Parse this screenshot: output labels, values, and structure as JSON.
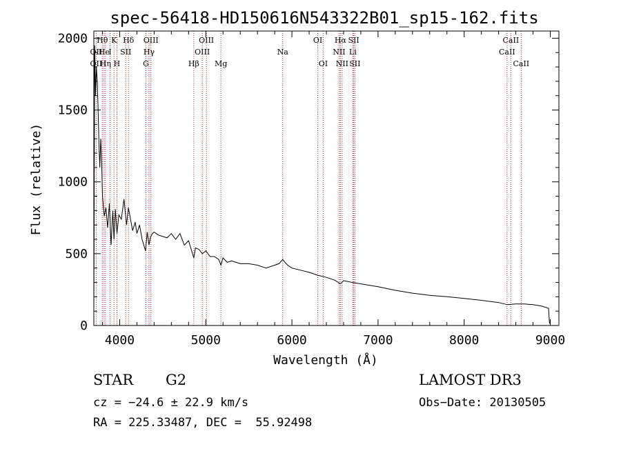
{
  "chart_data": {
    "type": "line",
    "title": "spec-56418-HD150616N543322B01_sp15-162.fits",
    "xlabel": "Wavelength (Å)",
    "ylabel": "Flux (relative)",
    "xlim": [
      3700,
      9100
    ],
    "ylim": [
      0,
      2050
    ],
    "xticks": [
      4000,
      5000,
      6000,
      7000,
      8000,
      9000
    ],
    "yticks": [
      0,
      500,
      1000,
      1500,
      2000
    ],
    "grid": false,
    "series": [
      {
        "name": "spectrum",
        "x": [
          3700,
          3710,
          3720,
          3730,
          3740,
          3750,
          3760,
          3770,
          3780,
          3790,
          3800,
          3820,
          3840,
          3860,
          3880,
          3900,
          3920,
          3934,
          3950,
          3968,
          3990,
          4020,
          4050,
          4080,
          4101,
          4120,
          4150,
          4180,
          4200,
          4230,
          4260,
          4300,
          4320,
          4340,
          4360,
          4380,
          4400,
          4450,
          4500,
          4550,
          4600,
          4650,
          4700,
          4750,
          4800,
          4861,
          4880,
          4920,
          4960,
          5000,
          5050,
          5100,
          5150,
          5175,
          5200,
          5250,
          5300,
          5400,
          5500,
          5600,
          5700,
          5800,
          5850,
          5893,
          5920,
          5950,
          6000,
          6100,
          6200,
          6300,
          6400,
          6500,
          6563,
          6600,
          6700,
          6800,
          7000,
          7200,
          7400,
          7600,
          7800,
          8000,
          8200,
          8400,
          8500,
          8600,
          8700,
          8800,
          8900,
          8980,
          8990,
          9000
        ],
        "values": [
          100,
          1950,
          1600,
          1800,
          1700,
          1500,
          1250,
          1100,
          1300,
          1180,
          900,
          760,
          820,
          680,
          850,
          560,
          800,
          600,
          810,
          640,
          770,
          740,
          880,
          700,
          820,
          760,
          660,
          720,
          640,
          700,
          600,
          520,
          650,
          560,
          620,
          640,
          650,
          630,
          620,
          610,
          640,
          600,
          640,
          560,
          590,
          470,
          540,
          530,
          500,
          520,
          480,
          480,
          460,
          420,
          470,
          440,
          450,
          430,
          430,
          420,
          400,
          420,
          430,
          460,
          440,
          420,
          400,
          385,
          370,
          350,
          335,
          315,
          290,
          312,
          300,
          290,
          270,
          245,
          225,
          210,
          200,
          188,
          175,
          160,
          145,
          150,
          150,
          145,
          135,
          120,
          20,
          10
        ]
      }
    ],
    "lines": [
      {
        "label": "Hθ",
        "wave": 3798,
        "row": 1
      },
      {
        "label": "OII",
        "wave": 3727,
        "row": 2
      },
      {
        "label": "OII",
        "wave": 3727,
        "row": 3
      },
      {
        "label": "He",
        "wave": 3820,
        "row": 2
      },
      {
        "label": "Hη",
        "wave": 3835,
        "row": 3
      },
      {
        "label": "K",
        "wave": 3934,
        "row": 1
      },
      {
        "label": "I",
        "wave": 3889,
        "row": 2
      },
      {
        "label": "H",
        "wave": 3968,
        "row": 3
      },
      {
        "label": "SII",
        "wave": 4070,
        "row": 2
      },
      {
        "label": "Hδ",
        "wave": 4102,
        "row": 1
      },
      {
        "label": "OIII",
        "wave": 4363,
        "row": 1
      },
      {
        "label": "Hγ",
        "wave": 4341,
        "row": 2
      },
      {
        "label": "G",
        "wave": 4305,
        "row": 3
      },
      {
        "label": "Hβ",
        "wave": 4861,
        "row": 3
      },
      {
        "label": "OIII",
        "wave": 5007,
        "row": 1
      },
      {
        "label": "OIII",
        "wave": 4959,
        "row": 2
      },
      {
        "label": "Mg",
        "wave": 5175,
        "row": 3
      },
      {
        "label": "Na",
        "wave": 5893,
        "row": 2
      },
      {
        "label": "OI",
        "wave": 6300,
        "row": 1
      },
      {
        "label": "OI",
        "wave": 6363,
        "row": 3
      },
      {
        "label": "Hα",
        "wave": 6563,
        "row": 1
      },
      {
        "label": "SII",
        "wave": 6717,
        "row": 1
      },
      {
        "label": "NII",
        "wave": 6548,
        "row": 2
      },
      {
        "label": "Li",
        "wave": 6707,
        "row": 2
      },
      {
        "label": "NII",
        "wave": 6583,
        "row": 3
      },
      {
        "label": "SII",
        "wave": 6731,
        "row": 3
      },
      {
        "label": "CaII",
        "wave": 8542,
        "row": 1
      },
      {
        "label": "CaII",
        "wave": 8498,
        "row": 2
      },
      {
        "label": "CaII",
        "wave": 8662,
        "row": 3
      }
    ],
    "line_color": "#b22222"
  },
  "info": {
    "class": "STAR",
    "subclass": "G2",
    "survey": "LAMOST DR3",
    "cz": "cz = −24.6 ± 22.9 km/s",
    "obsdate": "Obs−Date: 20130505",
    "radec": "RA = 225.33487, DEC =  55.92498"
  }
}
